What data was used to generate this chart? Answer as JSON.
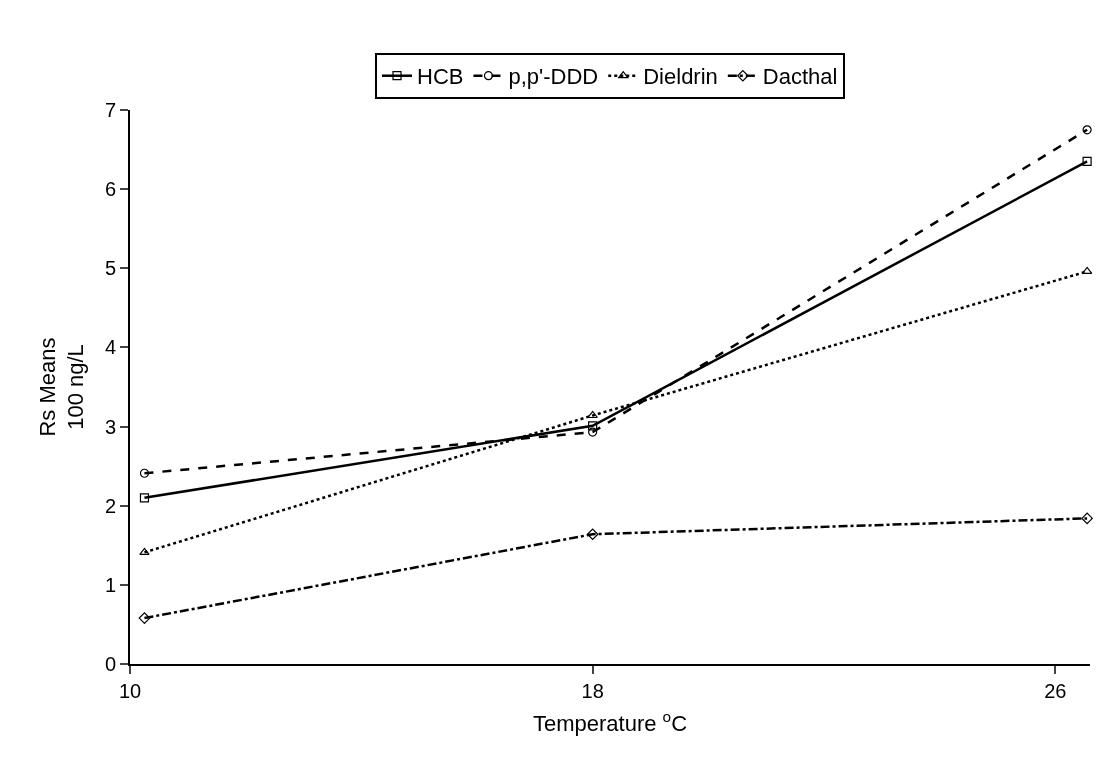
{
  "chart_data": {
    "type": "line",
    "xlabel": "Temperature $^{o}$C",
    "ylabel": "Rs Means\n100 ng/L",
    "x": [
      10.25,
      18,
      26.55
    ],
    "series": [
      {
        "name": "HCB",
        "color": "#000000",
        "values": [
          2.1,
          3.01,
          6.35
        ],
        "marker": "square",
        "line_style": "solid"
      },
      {
        "name": "p,p'-DDD",
        "color": "#000000",
        "values": [
          2.41,
          2.93,
          6.75
        ],
        "marker": "circle",
        "line_style": "dashed"
      },
      {
        "name": "Dieldrin",
        "color": "#000000",
        "values": [
          1.41,
          3.14,
          4.96
        ],
        "marker": "triangle",
        "line_style": "dotted"
      },
      {
        "name": "Dacthal",
        "color": "#000000",
        "values": [
          0.58,
          1.64,
          1.84
        ],
        "marker": "diamond",
        "line_style": "dashdot"
      }
    ],
    "xlim": [
      10,
      26.6
    ],
    "xticks": [
      10,
      18,
      26
    ],
    "ylim": [
      0,
      7
    ],
    "yticks": [
      0,
      1,
      2,
      3,
      4,
      5,
      6,
      7
    ],
    "legend": "top"
  }
}
